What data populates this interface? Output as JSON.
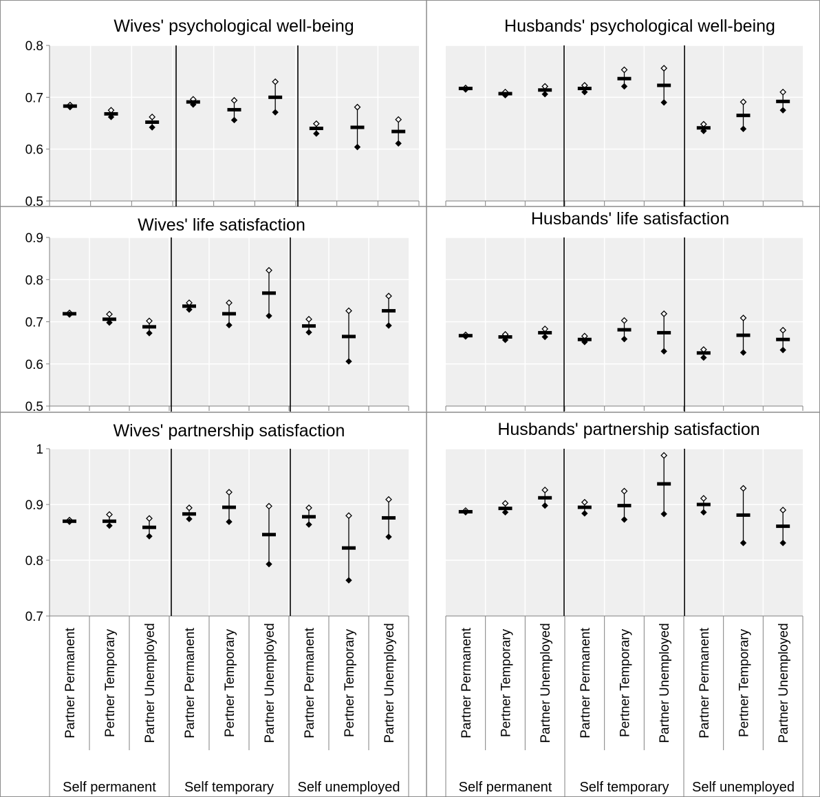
{
  "chart_data": [
    {
      "type": "scatter",
      "title": "Wives' psychological well-being",
      "ylim": [
        0.5,
        0.8
      ],
      "yticks": [
        "0.5",
        "0.6",
        "0.7",
        "0.8"
      ],
      "grid": true,
      "values": [
        {
          "mean": 0.683,
          "upper": 0.685,
          "lower": 0.681
        },
        {
          "mean": 0.668,
          "upper": 0.675,
          "lower": 0.662
        },
        {
          "mean": 0.652,
          "upper": 0.662,
          "lower": 0.642
        },
        {
          "mean": 0.691,
          "upper": 0.696,
          "lower": 0.686
        },
        {
          "mean": 0.676,
          "upper": 0.694,
          "lower": 0.656
        },
        {
          "mean": 0.7,
          "upper": 0.73,
          "lower": 0.671
        },
        {
          "mean": 0.64,
          "upper": 0.649,
          "lower": 0.63
        },
        {
          "mean": 0.642,
          "upper": 0.681,
          "lower": 0.604
        },
        {
          "mean": 0.634,
          "upper": 0.657,
          "lower": 0.611
        }
      ]
    },
    {
      "type": "scatter",
      "title": "Husbands' psychological well-being",
      "ylim": [
        0.5,
        0.8
      ],
      "yticks": [],
      "grid": true,
      "values": [
        {
          "mean": 0.717,
          "upper": 0.718,
          "lower": 0.715
        },
        {
          "mean": 0.707,
          "upper": 0.71,
          "lower": 0.704
        },
        {
          "mean": 0.714,
          "upper": 0.721,
          "lower": 0.706
        },
        {
          "mean": 0.717,
          "upper": 0.723,
          "lower": 0.71
        },
        {
          "mean": 0.736,
          "upper": 0.753,
          "lower": 0.721
        },
        {
          "mean": 0.723,
          "upper": 0.756,
          "lower": 0.69
        },
        {
          "mean": 0.641,
          "upper": 0.648,
          "lower": 0.635
        },
        {
          "mean": 0.665,
          "upper": 0.691,
          "lower": 0.639
        },
        {
          "mean": 0.692,
          "upper": 0.71,
          "lower": 0.675
        }
      ]
    },
    {
      "type": "scatter",
      "title": "Wives' life satisfaction",
      "ylim": [
        0.5,
        0.9
      ],
      "yticks": [
        "0.5",
        "0.6",
        "0.7",
        "0.8",
        "0.9"
      ],
      "grid": true,
      "values": [
        {
          "mean": 0.719,
          "upper": 0.721,
          "lower": 0.717
        },
        {
          "mean": 0.706,
          "upper": 0.718,
          "lower": 0.698
        },
        {
          "mean": 0.688,
          "upper": 0.702,
          "lower": 0.673
        },
        {
          "mean": 0.737,
          "upper": 0.745,
          "lower": 0.729
        },
        {
          "mean": 0.719,
          "upper": 0.745,
          "lower": 0.692
        },
        {
          "mean": 0.768,
          "upper": 0.822,
          "lower": 0.714
        },
        {
          "mean": 0.69,
          "upper": 0.706,
          "lower": 0.675
        },
        {
          "mean": 0.665,
          "upper": 0.726,
          "lower": 0.606
        },
        {
          "mean": 0.726,
          "upper": 0.761,
          "lower": 0.691
        }
      ]
    },
    {
      "type": "scatter",
      "title": "Husbands' life satisfaction",
      "ylim": [
        0.5,
        0.9
      ],
      "yticks": [],
      "grid": true,
      "values": [
        {
          "mean": 0.667,
          "upper": 0.669,
          "lower": 0.665
        },
        {
          "mean": 0.664,
          "upper": 0.67,
          "lower": 0.657
        },
        {
          "mean": 0.674,
          "upper": 0.683,
          "lower": 0.664
        },
        {
          "mean": 0.658,
          "upper": 0.666,
          "lower": 0.652
        },
        {
          "mean": 0.681,
          "upper": 0.703,
          "lower": 0.659
        },
        {
          "mean": 0.674,
          "upper": 0.719,
          "lower": 0.63
        },
        {
          "mean": 0.626,
          "upper": 0.634,
          "lower": 0.615
        },
        {
          "mean": 0.668,
          "upper": 0.709,
          "lower": 0.627
        },
        {
          "mean": 0.658,
          "upper": 0.68,
          "lower": 0.633
        }
      ]
    },
    {
      "type": "scatter",
      "title": "Wives' partnership satisfaction",
      "ylim": [
        0.7,
        1.0
      ],
      "yticks": [
        "0.7",
        "0.8",
        "0.9",
        "1"
      ],
      "grid": true,
      "values": [
        {
          "mean": 0.87,
          "upper": 0.872,
          "lower": 0.869
        },
        {
          "mean": 0.87,
          "upper": 0.882,
          "lower": 0.862
        },
        {
          "mean": 0.859,
          "upper": 0.875,
          "lower": 0.843
        },
        {
          "mean": 0.883,
          "upper": 0.894,
          "lower": 0.874
        },
        {
          "mean": 0.895,
          "upper": 0.922,
          "lower": 0.869
        },
        {
          "mean": 0.846,
          "upper": 0.897,
          "lower": 0.793
        },
        {
          "mean": 0.878,
          "upper": 0.894,
          "lower": 0.864
        },
        {
          "mean": 0.822,
          "upper": 0.88,
          "lower": 0.764
        },
        {
          "mean": 0.876,
          "upper": 0.909,
          "lower": 0.842
        }
      ]
    },
    {
      "type": "scatter",
      "title": "Husbands' partnership satisfaction",
      "ylim": [
        0.7,
        1.0
      ],
      "yticks": [],
      "grid": true,
      "values": [
        {
          "mean": 0.887,
          "upper": 0.889,
          "lower": 0.886
        },
        {
          "mean": 0.893,
          "upper": 0.902,
          "lower": 0.886
        },
        {
          "mean": 0.912,
          "upper": 0.926,
          "lower": 0.898
        },
        {
          "mean": 0.895,
          "upper": 0.904,
          "lower": 0.884
        },
        {
          "mean": 0.898,
          "upper": 0.924,
          "lower": 0.873
        },
        {
          "mean": 0.937,
          "upper": 0.988,
          "lower": 0.883
        },
        {
          "mean": 0.9,
          "upper": 0.911,
          "lower": 0.886
        },
        {
          "mean": 0.881,
          "upper": 0.929,
          "lower": 0.831
        },
        {
          "mean": 0.861,
          "upper": 0.89,
          "lower": 0.831
        }
      ]
    }
  ],
  "categories": [
    "Partner Permanent",
    "Pertner Temporary",
    "Partner Unemployed",
    "Partner Permanent",
    "Pertner Temporary",
    "Partner Unemployed",
    "Partner Permanent",
    "Pertner Temporary",
    "Partner Unemployed"
  ],
  "groups": [
    "Self permanent",
    "Self temporary",
    "Self unemployed"
  ],
  "colors": {
    "plot_background": "#efefef",
    "gridline": "#ffffff",
    "marker": "#000000",
    "border": "#8c8c8c"
  }
}
